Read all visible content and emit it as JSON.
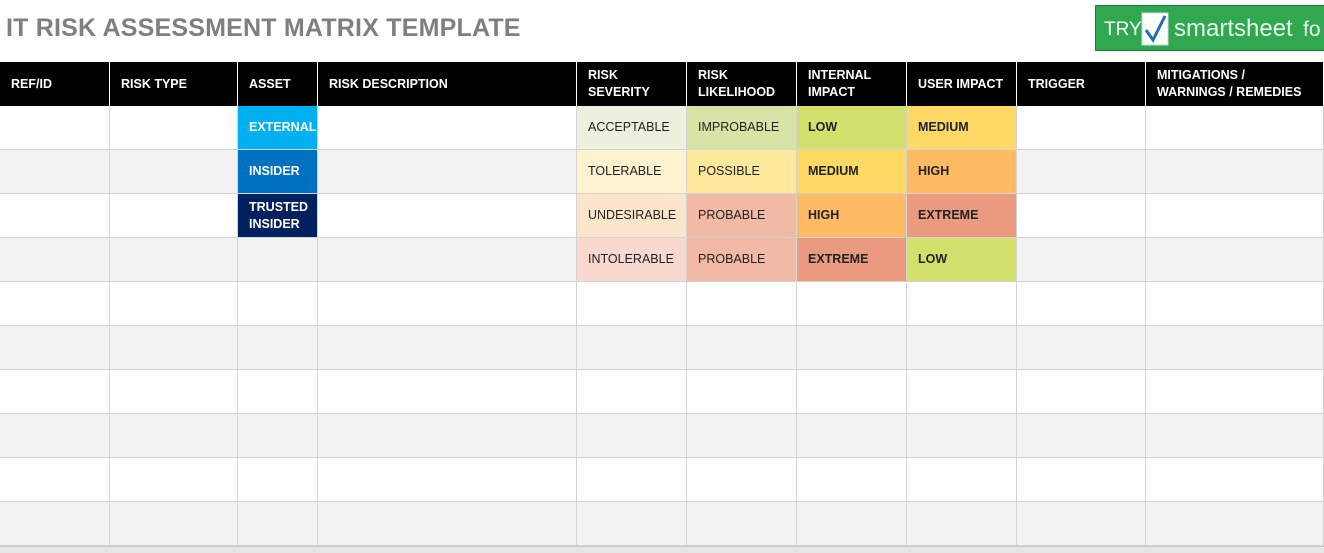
{
  "header": {
    "title": "IT RISK ASSESSMENT MATRIX TEMPLATE",
    "button": {
      "try": "TRY",
      "brand": "smartsheet",
      "suffix": "fo"
    }
  },
  "table": {
    "columns": [
      "REF/ID",
      "RISK TYPE",
      "ASSET",
      "RISK DESCRIPTION",
      "RISK SEVERITY",
      "RISK LIKELIHOOD",
      "INTERNAL IMPACT",
      "USER IMPACT",
      "TRIGGER",
      "MITIGATIONS / WARNINGS / REMEDIES"
    ],
    "rows": [
      {
        "asset": {
          "text": "EXTERNAL",
          "color": "#00b0f0"
        },
        "severity": {
          "text": "ACCEPTABLE",
          "color": "#ebf1de"
        },
        "likelihood": {
          "text": "IMPROBABLE",
          "color": "#d8e4a6"
        },
        "internal": {
          "text": "LOW",
          "color": "#d4e06c"
        },
        "user": {
          "text": "MEDIUM",
          "color": "#ffd966"
        }
      },
      {
        "asset": {
          "text": "INSIDER",
          "color": "#0070c0"
        },
        "severity": {
          "text": "TOLERABLE",
          "color": "#fff2d0"
        },
        "likelihood": {
          "text": "POSSIBLE",
          "color": "#fde99c"
        },
        "internal": {
          "text": "MEDIUM",
          "color": "#ffd966"
        },
        "user": {
          "text": "HIGH",
          "color": "#ffbb63"
        }
      },
      {
        "asset": {
          "text": "TRUSTED INSIDER",
          "color": "#002060"
        },
        "severity": {
          "text": "UNDESIRABLE",
          "color": "#fde5cc"
        },
        "likelihood": {
          "text": "PROBABLE",
          "color": "#f2b9a4"
        },
        "internal": {
          "text": "HIGH",
          "color": "#ffbb63"
        },
        "user": {
          "text": "EXTREME",
          "color": "#ea9a7e"
        }
      },
      {
        "severity": {
          "text": "INTOLERABLE",
          "color": "#f9d8d0"
        },
        "likelihood": {
          "text": "PROBABLE",
          "color": "#f2b9a4"
        },
        "internal": {
          "text": "EXTREME",
          "color": "#ea9a7e"
        },
        "user": {
          "text": "LOW",
          "color": "#d4e06c"
        }
      }
    ]
  }
}
